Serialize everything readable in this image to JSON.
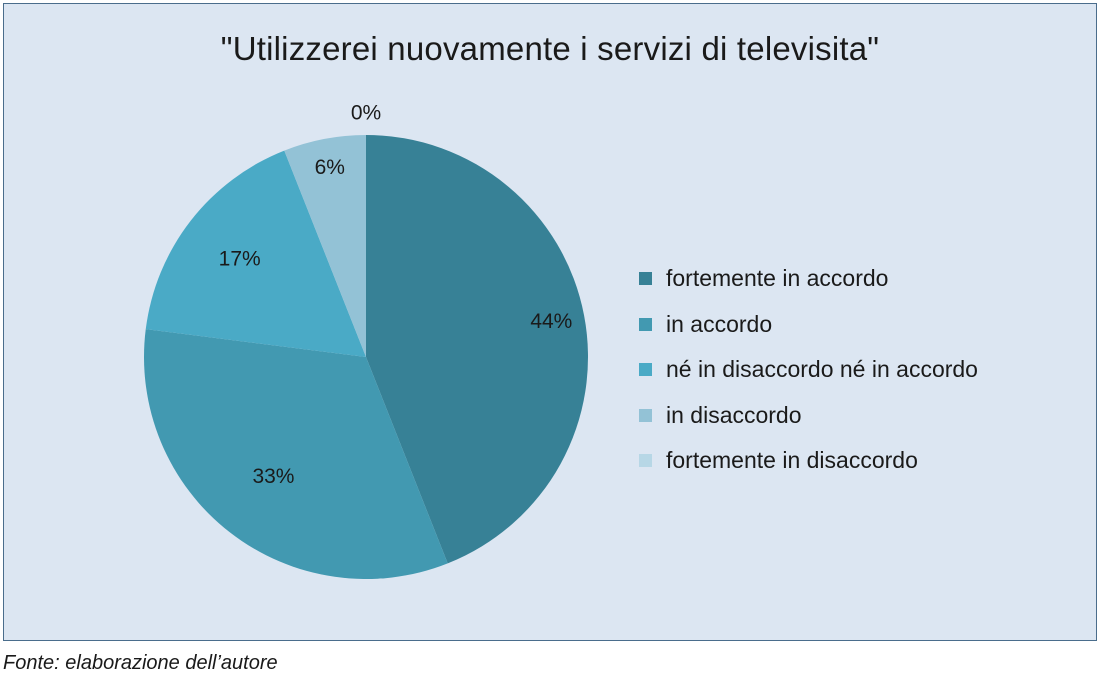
{
  "chart_data": {
    "type": "pie",
    "title": "\"Utilizzerei nuovamente i servizi di televisita\"",
    "categories": [
      "fortemente in accordo",
      "in accordo",
      "né in disaccordo né in accordo",
      "in disaccordo",
      "fortemente in disaccordo"
    ],
    "values": [
      44,
      33,
      17,
      6,
      0
    ],
    "value_labels": [
      "44%",
      "33%",
      "17%",
      "6%",
      "0%"
    ],
    "colors": [
      "#378196",
      "#4299b1",
      "#4aaac6",
      "#93c2d6",
      "#b7d7e6"
    ],
    "legend_position": "right"
  },
  "colors": {
    "background": "#dce6f2",
    "border": "#4a6d8c",
    "text": "#1a1a1a"
  },
  "source_note": "Fonte: elaborazione dell’autore"
}
